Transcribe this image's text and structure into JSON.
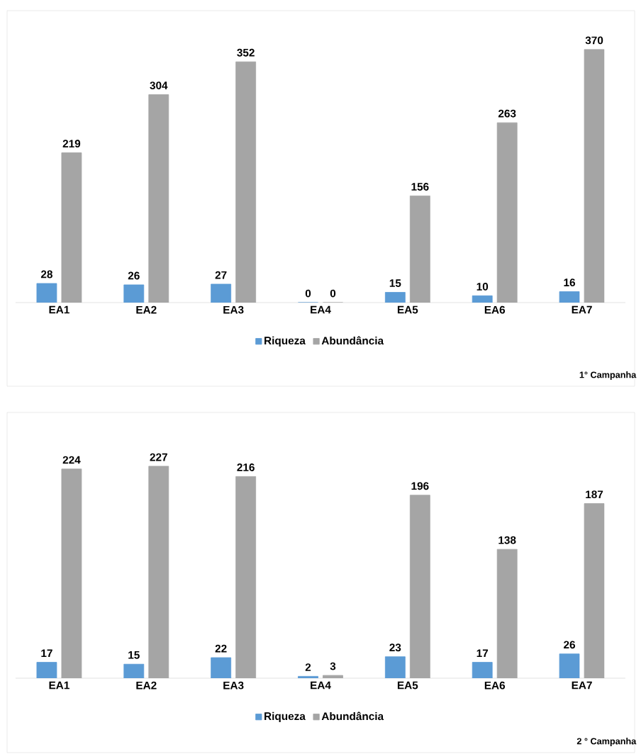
{
  "chart_data": [
    {
      "type": "bar",
      "categories": [
        "EA1",
        "EA2",
        "EA3",
        "EA4",
        "EA5",
        "EA6",
        "EA7"
      ],
      "series": [
        {
          "name": "Riqueza",
          "color": "#5b9bd5",
          "values": [
            28,
            26,
            27,
            0,
            15,
            10,
            16
          ]
        },
        {
          "name": "Abundância",
          "color": "#a5a5a5",
          "values": [
            219,
            304,
            352,
            0,
            156,
            263,
            370
          ]
        }
      ],
      "data_labels": true,
      "legend": "bottom",
      "annotations": [
        "1° Campanha"
      ]
    },
    {
      "type": "bar",
      "categories": [
        "EA1",
        "EA2",
        "EA3",
        "EA4",
        "EA5",
        "EA6",
        "EA7"
      ],
      "series": [
        {
          "name": "Riqueza",
          "color": "#5b9bd5",
          "values": [
            17,
            15,
            22,
            2,
            23,
            17,
            26
          ]
        },
        {
          "name": "Abundância",
          "color": "#a5a5a5",
          "values": [
            224,
            227,
            216,
            3,
            196,
            138,
            187
          ]
        }
      ],
      "data_labels": true,
      "legend": "bottom",
      "annotations": [
        "2 ° Campanha"
      ]
    }
  ]
}
